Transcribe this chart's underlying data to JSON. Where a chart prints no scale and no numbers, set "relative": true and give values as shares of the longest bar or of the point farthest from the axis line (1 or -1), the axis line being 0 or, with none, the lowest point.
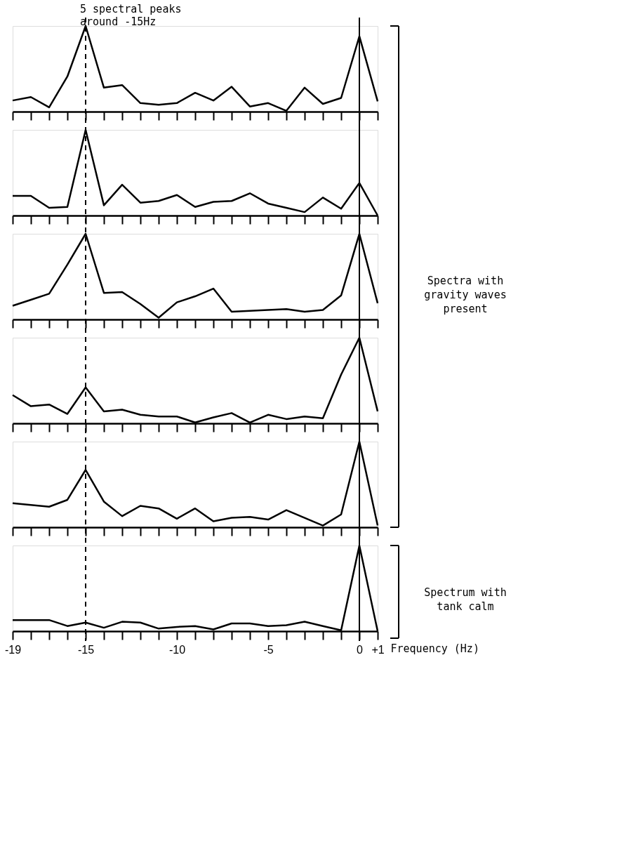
{
  "chart_data": [
    {
      "type": "line",
      "relative": true,
      "color": "#000000",
      "categories": [
        null,
        null,
        null,
        null,
        null,
        null,
        null,
        null,
        null,
        null,
        null,
        null,
        null,
        null,
        null,
        null,
        null,
        null,
        null,
        null,
        null
      ],
      "values": [
        0.13,
        0.17,
        0.05,
        0.41,
        1,
        0.28,
        0.31,
        0.1,
        0.08,
        0.1,
        0.22,
        0.13,
        0.29,
        0.06,
        0.1,
        0.01,
        0.28,
        0.09,
        0.16,
        0.88,
        0.12
      ]
    },
    {
      "type": "line",
      "relative": true,
      "color": "#000000",
      "categories": [
        null,
        null,
        null,
        null,
        null,
        null,
        null,
        null,
        null,
        null,
        null,
        null,
        null,
        null,
        null,
        null,
        null,
        null,
        null,
        null,
        null
      ],
      "values": [
        0.23,
        0.23,
        0.09,
        0.1,
        1,
        0.12,
        0.36,
        0.15,
        0.17,
        0.24,
        0.1,
        0.16,
        0.17,
        0.26,
        0.14,
        0.09,
        0.04,
        0.21,
        0.08,
        0.38,
        0
      ]
    },
    {
      "type": "line",
      "relative": true,
      "color": "#000000",
      "categories": [
        null,
        null,
        null,
        null,
        null,
        null,
        null,
        null,
        null,
        null,
        null,
        null,
        null,
        null,
        null,
        null,
        null,
        null,
        null,
        null,
        null
      ],
      "values": [
        0.16,
        0.23,
        0.3,
        0.64,
        1,
        0.31,
        0.32,
        0.18,
        0.02,
        0.2,
        0.27,
        0.36,
        0.09,
        0.1,
        0.11,
        0.12,
        0.09,
        0.11,
        0.28,
        1,
        0.19
      ],
      "annotations": [
        "Spectra with gravity waves present"
      ]
    },
    {
      "type": "line",
      "relative": true,
      "color": "#000000",
      "categories": [
        null,
        null,
        null,
        null,
        null,
        null,
        null,
        null,
        null,
        null,
        null,
        null,
        null,
        null,
        null,
        null,
        null,
        null,
        null,
        null,
        null
      ],
      "values": [
        0.33,
        0.2,
        0.22,
        0.11,
        0.42,
        0.14,
        0.16,
        0.1,
        0.08,
        0.08,
        0.01,
        0.07,
        0.12,
        0.01,
        0.1,
        0.05,
        0.08,
        0.06,
        0.57,
        1,
        0.14
      ]
    },
    {
      "type": "line",
      "relative": true,
      "color": "#000000",
      "categories": [
        null,
        null,
        null,
        null,
        null,
        null,
        null,
        null,
        null,
        null,
        null,
        null,
        null,
        null,
        null,
        null,
        null,
        null,
        null,
        null,
        null
      ],
      "values": [
        0.28,
        0.26,
        0.24,
        0.32,
        0.67,
        0.3,
        0.13,
        0.25,
        0.22,
        0.1,
        0.22,
        0.07,
        0.11,
        0.12,
        0.09,
        0.2,
        0.11,
        0.02,
        0.15,
        1,
        0.02
      ]
    },
    {
      "type": "line",
      "relative": true,
      "color": "#000000",
      "xlim": [
        -19,
        1
      ],
      "xlabel": "Frequency (Hz)",
      "x": [
        -19,
        -18,
        -17,
        -16,
        -15,
        -14,
        -13,
        -12,
        -11,
        -10,
        -9,
        -8,
        -7,
        -6,
        -5,
        -4,
        -3,
        -2,
        -1,
        0,
        1
      ],
      "values": [
        0.13,
        0.13,
        0.13,
        0.06,
        0.1,
        0.04,
        0.11,
        0.1,
        0.03,
        0.05,
        0.06,
        0.02,
        0.09,
        0.09,
        0.06,
        0.07,
        0.11,
        0.06,
        0.01,
        1,
        0
      ],
      "xticks": [
        -19,
        {
          "value": -18,
          "label": null
        },
        {
          "value": -17,
          "label": null
        },
        {
          "value": -16,
          "label": null
        },
        -15,
        {
          "value": -14,
          "label": null
        },
        {
          "value": -13,
          "label": null
        },
        {
          "value": -12,
          "label": null
        },
        {
          "value": -11,
          "label": null
        },
        -10,
        {
          "value": -9,
          "label": null
        },
        {
          "value": -8,
          "label": null
        },
        {
          "value": -7,
          "label": null
        },
        {
          "value": -6,
          "label": null
        },
        -5,
        {
          "value": -4,
          "label": null
        },
        {
          "value": -3,
          "label": null
        },
        {
          "value": -2,
          "label": null
        },
        {
          "value": -1,
          "label": null
        },
        0,
        {
          "value": 1,
          "label": "+1"
        }
      ],
      "ref_lines": [
        {
          "axis": "x",
          "value": -15,
          "label": "5 spectral peaks around -15Hz",
          "line_style": "dashed",
          "color": "#000000"
        },
        {
          "axis": "x",
          "value": 0,
          "line_style": "solid",
          "color": "#000000"
        }
      ],
      "annotations": [
        "Spectrum with tank calm"
      ]
    }
  ]
}
